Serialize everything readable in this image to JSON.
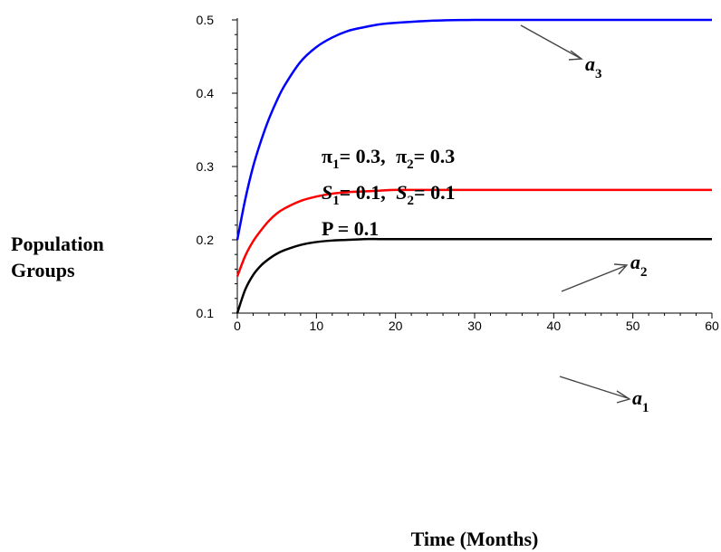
{
  "chart_data": {
    "type": "line",
    "xlabel": "Time (Months)",
    "ylabel": [
      "Population",
      "Groups"
    ],
    "xlim": [
      0,
      60
    ],
    "ylim": [
      0.1,
      0.5
    ],
    "xticks": [
      0,
      10,
      20,
      30,
      40,
      50,
      60
    ],
    "yticks": [
      0.1,
      0.2,
      0.3,
      0.4,
      0.5
    ],
    "xtick_labels": [
      "0",
      "10",
      "20",
      "30",
      "40",
      "50",
      "60"
    ],
    "ytick_labels": [
      "0.1",
      "0.2",
      "0.3",
      "0.4",
      "0.5"
    ],
    "grid": false,
    "series": [
      {
        "name": "a_3",
        "label_base": "a",
        "label_sub": "3",
        "color": "#0000ff",
        "x": [
          0,
          1,
          2,
          3,
          4,
          5,
          6,
          8,
          10,
          12,
          14,
          16,
          18,
          20,
          25,
          30,
          35,
          40,
          50,
          60
        ],
        "y": [
          0.2,
          0.255,
          0.3,
          0.335,
          0.365,
          0.39,
          0.411,
          0.443,
          0.463,
          0.476,
          0.485,
          0.49,
          0.494,
          0.496,
          0.499,
          0.5,
          0.5,
          0.5,
          0.5,
          0.5
        ]
      },
      {
        "name": "a_2",
        "label_base": "a",
        "label_sub": "2",
        "color": "#ff0000",
        "x": [
          0,
          1,
          2,
          3,
          4,
          5,
          6,
          8,
          10,
          12,
          14,
          16,
          18,
          20,
          25,
          30,
          40,
          50,
          60
        ],
        "y": [
          0.15,
          0.178,
          0.198,
          0.213,
          0.226,
          0.236,
          0.243,
          0.253,
          0.259,
          0.263,
          0.265,
          0.266,
          0.267,
          0.268,
          0.268,
          0.268,
          0.268,
          0.268,
          0.268
        ]
      },
      {
        "name": "a_1",
        "label_base": "a",
        "label_sub": "1",
        "color": "#000000",
        "x": [
          0,
          1,
          2,
          3,
          4,
          5,
          6,
          8,
          10,
          12,
          14,
          16,
          18,
          20,
          25,
          30,
          40,
          50,
          60
        ],
        "y": [
          0.1,
          0.132,
          0.152,
          0.165,
          0.174,
          0.181,
          0.186,
          0.193,
          0.197,
          0.199,
          0.2,
          0.201,
          0.201,
          0.201,
          0.201,
          0.201,
          0.201,
          0.201,
          0.201
        ]
      }
    ],
    "annotations": {
      "line1": {
        "sym1": "π",
        "sub1": "1",
        "val1": "= 0.3,",
        "sym2": "π",
        "sub2": "2",
        "val2": "= 0.3"
      },
      "line2": {
        "sym1": "S",
        "sub1": "1",
        "val1": "= 0.1,",
        "sym2": "S",
        "sub2": "2",
        "val2": "= 0.1"
      },
      "line3": "P = 0.1"
    }
  }
}
